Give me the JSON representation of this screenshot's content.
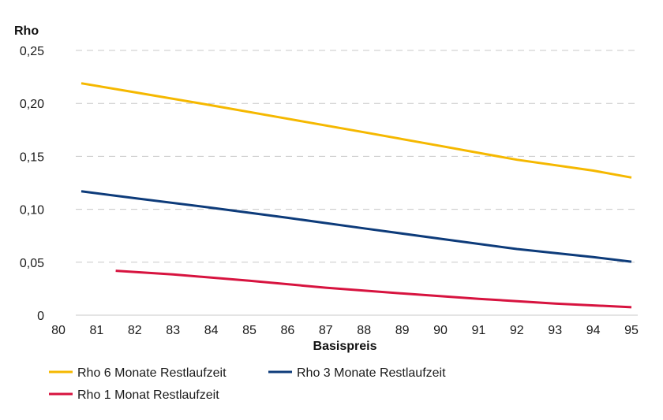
{
  "chart_data": {
    "type": "line",
    "ylabel": "Rho",
    "xlabel": "Basispreis",
    "xlim": [
      80,
      95
    ],
    "ylim": [
      0,
      0.25
    ],
    "x_ticks": [
      80,
      81,
      82,
      83,
      84,
      85,
      86,
      87,
      88,
      89,
      90,
      91,
      92,
      93,
      94,
      95
    ],
    "x_tick_labels": [
      "80",
      "81",
      "82",
      "83",
      "84",
      "85",
      "86",
      "87",
      "88",
      "89",
      "90",
      "91",
      "92",
      "93",
      "94",
      "95"
    ],
    "y_ticks": [
      0,
      0.05,
      0.1,
      0.15,
      0.2,
      0.25
    ],
    "y_tick_labels": [
      "0",
      "0,05",
      "0,10",
      "0,15",
      "0,20",
      "0,25"
    ],
    "grid": "horizontal dashed",
    "legend_position": "bottom",
    "series": [
      {
        "name": "Rho 6 Monate Restlaufzeit",
        "color": "#F5B800",
        "x": [
          80.6,
          82,
          84,
          86,
          88,
          90,
          92,
          94,
          95
        ],
        "y": [
          0.219,
          0.2105,
          0.1982,
          0.1855,
          0.1728,
          0.1598,
          0.1468,
          0.1365,
          0.13
        ]
      },
      {
        "name": "Rho 3 Monate Restlaufzeit",
        "color": "#0D3B7A",
        "x": [
          80.6,
          82,
          84,
          86,
          88,
          90,
          92,
          94,
          95
        ],
        "y": [
          0.117,
          0.1105,
          0.1015,
          0.092,
          0.082,
          0.0722,
          0.0625,
          0.0548,
          0.0505
        ]
      },
      {
        "name": "Rho 1 Monat Restlaufzeit",
        "color": "#D7133F",
        "x": [
          81.5,
          83,
          85,
          87,
          89,
          91,
          93,
          95
        ],
        "y": [
          0.042,
          0.0385,
          0.0325,
          0.026,
          0.0205,
          0.0155,
          0.011,
          0.0075
        ]
      }
    ]
  }
}
